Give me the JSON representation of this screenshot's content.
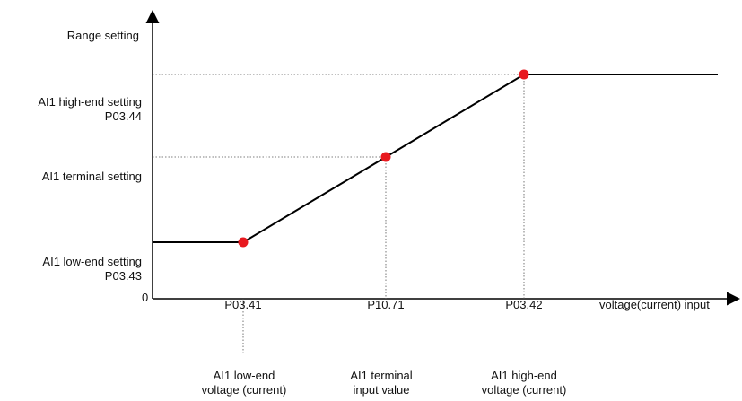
{
  "y_axis_title": "Range setting",
  "x_axis_title": "voltage(current)  input",
  "origin_label": "0",
  "y_labels": {
    "high_line1": "AI1  high-end  setting",
    "high_line2": "P03.44",
    "terminal": "AI1  terminal setting",
    "low_line1": "AI1  low-end  setting",
    "low_line2": "P03.43"
  },
  "x_labels": {
    "p0341": "P03.41",
    "p1071": "P10.71",
    "p0342": "P03.42"
  },
  "x_captions": {
    "low_line1": "AI1 low-end",
    "low_line2": "voltage (current)",
    "terminal_line1": "AI1 terminal",
    "terminal_line2": "input value",
    "high_line1": "AI1 high-end",
    "high_line2": "voltage (current)"
  },
  "colors": {
    "curve": "#000000",
    "point": "#e8191f",
    "guide": "#555555"
  }
}
